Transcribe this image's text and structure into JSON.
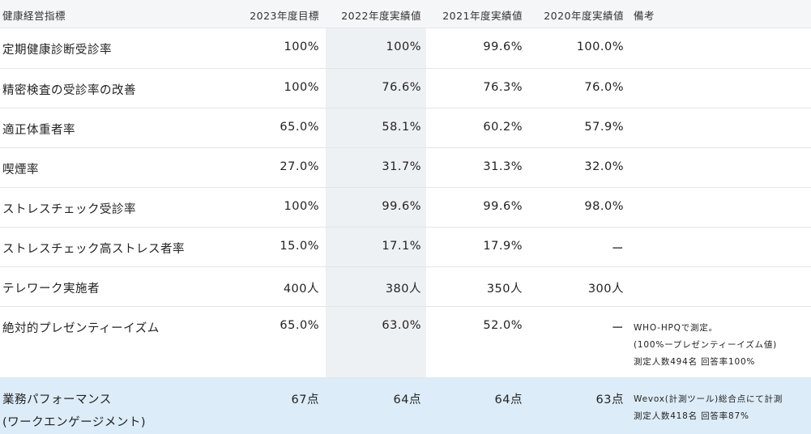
{
  "table": {
    "headers": [
      "健康経営指標",
      "2023年度目標",
      "2022年度実績値",
      "2021年度実績値",
      "2020年度実績値",
      "備考"
    ],
    "rows": [
      [
        "定期健康診断受診率",
        "100%",
        "100%",
        "99.6%",
        "100.0%"
      ],
      [
        "精密検査の受診率の改善",
        "100%",
        "76.6%",
        "76.3%",
        "76.0%"
      ],
      [
        "適正体重者率",
        "65.0%",
        "58.1%",
        "60.2%",
        "57.9%"
      ],
      [
        "喫煙率",
        "27.0%",
        "31.7%",
        "31.3%",
        "32.0%"
      ],
      [
        "ストレスチェック受診率",
        "100%",
        "99.6%",
        "99.6%",
        "98.0%"
      ],
      [
        "ストレスチェック高ストレス者率",
        "15.0%",
        "17.1%",
        "17.9%",
        "ー"
      ],
      [
        "テレワーク実施者",
        "400人",
        "380人",
        "350人",
        "300人"
      ],
      [
        "絶対的プレゼンティーイズム",
        "65.0%",
        "63.0%",
        "52.0%",
        "ー",
        [
          "WHO-HPQで測定。",
          "(100%ープレゼンティーイズム値)",
          "測定人数494名 回答率100%"
        ]
      ],
      [
        [
          "業務パフォーマンス",
          "(ワークエンゲージメント)"
        ],
        "67点",
        "64点",
        "64点",
        "63点",
        [
          "Wevox(計測ツール)総合点にて計測",
          "測定人数418名 回答率87%"
        ]
      ]
    ]
  }
}
